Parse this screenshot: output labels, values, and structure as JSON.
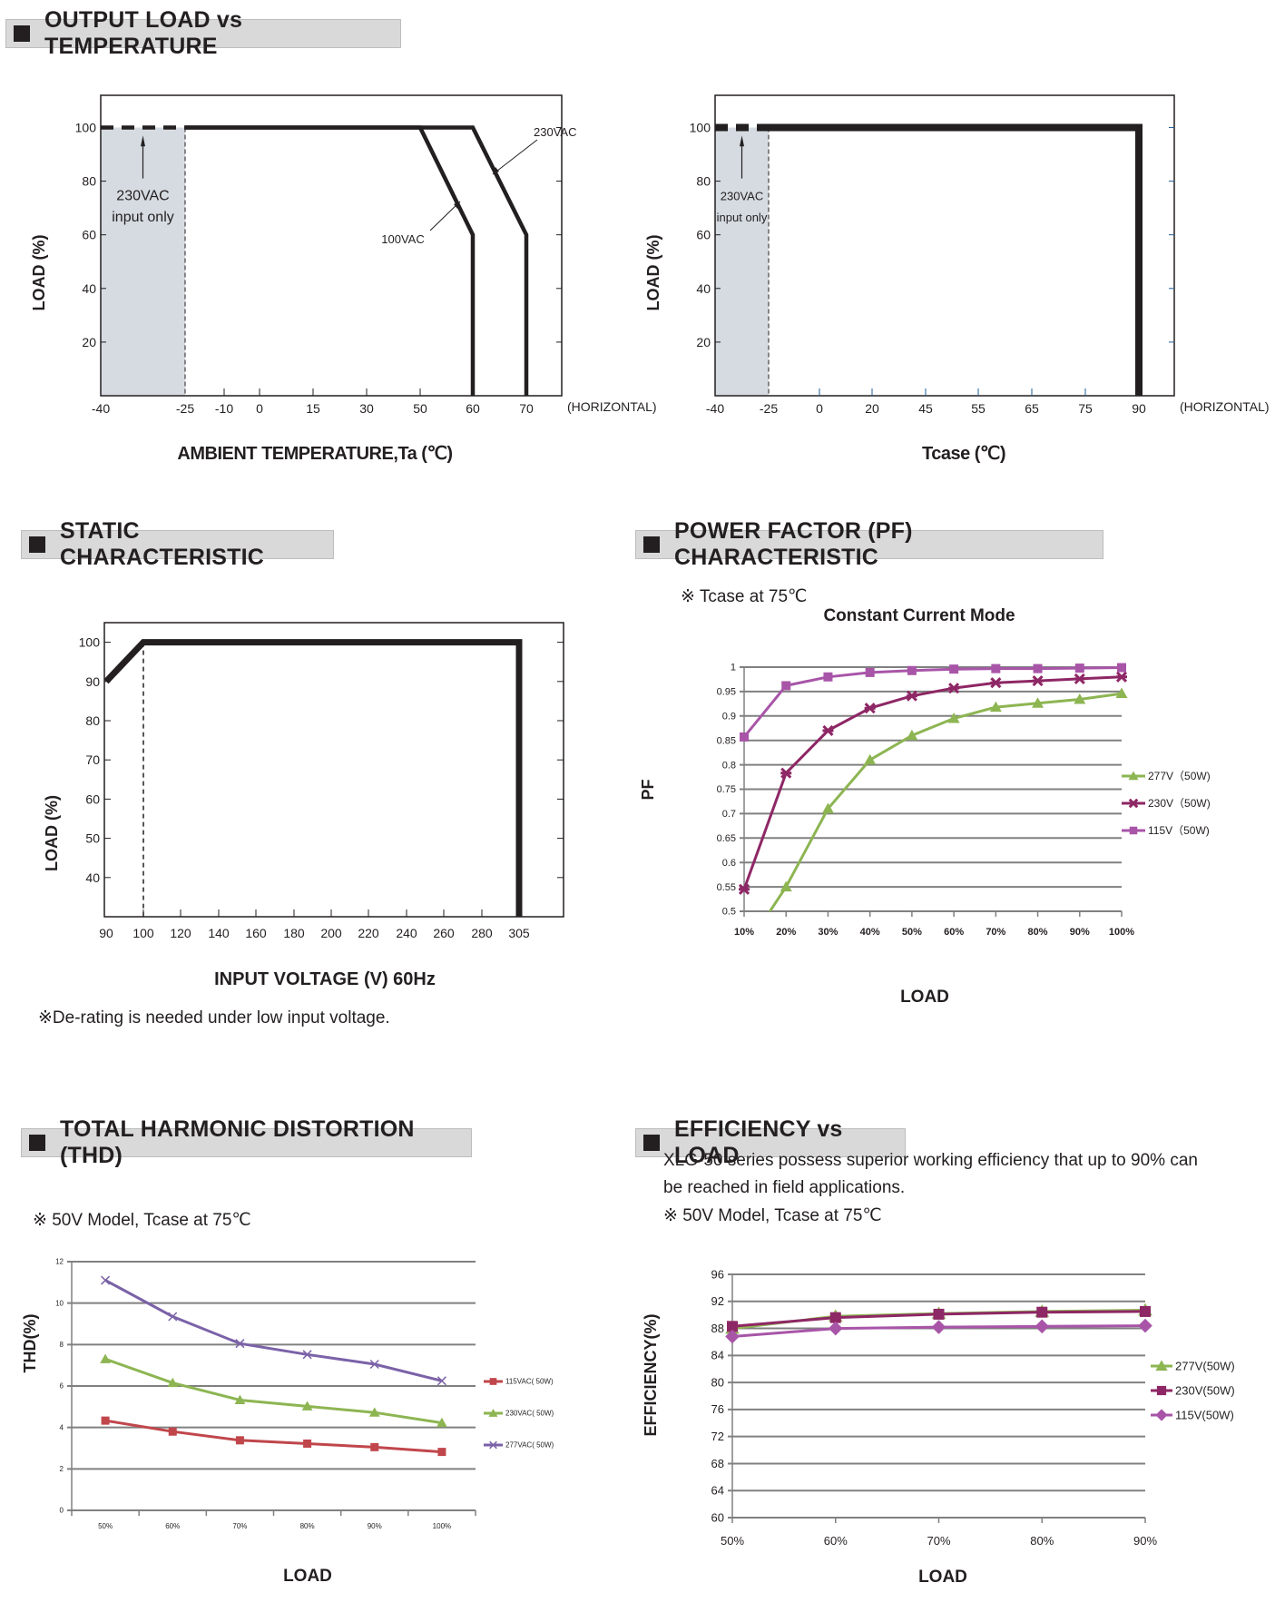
{
  "sections": {
    "output_load": {
      "title": "OUTPUT LOAD vs TEMPERATURE"
    },
    "static": {
      "title": "STATIC CHARACTERISTIC",
      "note": "※De-rating is needed under low input voltage."
    },
    "pf": {
      "title": "POWER FACTOR (PF) CHARACTERISTIC",
      "note": "※ Tcase at 75℃"
    },
    "thd": {
      "title": "TOTAL HARMONIC DISTORTION (THD)",
      "note": "※ 50V Model, Tcase at 75℃"
    },
    "efficiency": {
      "title": "EFFICIENCY vs LOAD",
      "desc_line1": "XLG-50 series possess superior working efficiency that up to 90% can",
      "desc_line2": "be reached in field applications.",
      "note": "※ 50V Model, Tcase at 75℃"
    }
  },
  "chart_data": [
    {
      "id": "derating_ambient",
      "type": "line",
      "title": "",
      "xlabel": "AMBIENT TEMPERATURE,Ta (℃)",
      "ylabel": "LOAD (%)",
      "x_ticks": [
        -40,
        -25,
        -10,
        0,
        15,
        30,
        50,
        60,
        70
      ],
      "x_tick_labels": [
        "-40",
        "-25",
        "-10",
        "0",
        "15",
        "30",
        "50",
        "60",
        "70"
      ],
      "x_suffix": "(HORIZONTAL)",
      "y_ticks": [
        20,
        40,
        60,
        80,
        100
      ],
      "y_tick_labels": [
        "20",
        "40",
        "60",
        "80",
        "100"
      ],
      "ylim": [
        0,
        112
      ],
      "shaded_region": {
        "x": [
          -40,
          -25
        ],
        "label_line1": "230VAC",
        "label_line2": "input only"
      },
      "series": [
        {
          "name": "100VAC",
          "points": [
            [
              -25,
              100
            ],
            [
              50,
              100
            ],
            [
              60,
              60
            ],
            [
              60,
              0
            ]
          ]
        },
        {
          "name": "230VAC",
          "points": [
            [
              -40,
              100
            ],
            [
              -25,
              100
            ],
            [
              60,
              100
            ],
            [
              70,
              60
            ],
            [
              70,
              0
            ]
          ],
          "dashed_until": -25
        }
      ],
      "annotations": [
        "230VAC",
        "100VAC"
      ]
    },
    {
      "id": "derating_tcase",
      "type": "line",
      "xlabel": "Tcase (℃)",
      "ylabel": "LOAD (%)",
      "x_ticks": [
        -40,
        -25,
        0,
        20,
        45,
        55,
        65,
        75,
        90
      ],
      "x_tick_labels": [
        "-40",
        "-25",
        "0",
        "20",
        "45",
        "55",
        "65",
        "75",
        "90"
      ],
      "x_suffix": "(HORIZONTAL)",
      "y_ticks": [
        20,
        40,
        60,
        80,
        100
      ],
      "y_tick_labels": [
        "20",
        "40",
        "60",
        "80",
        "100"
      ],
      "ylim": [
        0,
        112
      ],
      "shaded_region": {
        "x": [
          -40,
          -25
        ],
        "label_line1": "230VAC",
        "label_line2": "input only"
      },
      "series": [
        {
          "name": "Load",
          "points": [
            [
              -40,
              100
            ],
            [
              -25,
              100
            ],
            [
              90,
              100
            ],
            [
              90,
              0
            ]
          ],
          "dashed_until": -25
        }
      ]
    },
    {
      "id": "static",
      "type": "line",
      "xlabel": "INPUT VOLTAGE (V) 60Hz",
      "ylabel": "LOAD (%)",
      "x_tick_labels": [
        "90",
        "100",
        "120",
        "140",
        "160",
        "180",
        "200",
        "220",
        "240",
        "260",
        "280",
        "305"
      ],
      "y_ticks": [
        40,
        50,
        60,
        70,
        80,
        90,
        100
      ],
      "y_tick_labels": [
        "40",
        "50",
        "60",
        "70",
        "80",
        "90",
        "100"
      ],
      "ylim": [
        30,
        105
      ],
      "series": [
        {
          "name": "Load",
          "points": [
            [
              "90",
              90
            ],
            [
              "100",
              100
            ],
            [
              "305",
              100
            ],
            [
              "305",
              30
            ]
          ]
        }
      ],
      "reference_line_x": "100"
    },
    {
      "id": "pf",
      "type": "line",
      "title": "Constant Current Mode",
      "xlabel": "LOAD",
      "ylabel": "PF",
      "categories": [
        "10%",
        "20%",
        "30%",
        "40%",
        "50%",
        "60%",
        "70%",
        "80%",
        "90%",
        "100%"
      ],
      "y_ticks": [
        0.5,
        0.55,
        0.6,
        0.65,
        0.7,
        0.75,
        0.8,
        0.85,
        0.9,
        0.95,
        1
      ],
      "y_tick_labels": [
        "0.5",
        "0.55",
        "0.6",
        "0.65",
        "0.7",
        "0.75",
        "0.8",
        "0.85",
        "0.9",
        "0.95",
        "1"
      ],
      "ylim": [
        0.5,
        1
      ],
      "grid": true,
      "legend": "right",
      "series": [
        {
          "name": "277V（50W)",
          "color": "#8db552",
          "marker": "triangle",
          "values": [
            0.42,
            0.55,
            0.71,
            0.81,
            0.86,
            0.895,
            0.918,
            0.926,
            0.934,
            0.946
          ]
        },
        {
          "name": "230V（50W)",
          "color": "#8e2765",
          "marker": "star",
          "values": [
            0.545,
            0.783,
            0.87,
            0.916,
            0.941,
            0.957,
            0.968,
            0.972,
            0.976,
            0.98
          ]
        },
        {
          "name": "115V（50W)",
          "color": "#a855a8",
          "marker": "square",
          "values": [
            0.857,
            0.962,
            0.98,
            0.989,
            0.993,
            0.996,
            0.997,
            0.997,
            0.998,
            0.999
          ]
        }
      ]
    },
    {
      "id": "thd",
      "type": "line",
      "xlabel": "LOAD",
      "ylabel": "THD(%)",
      "categories": [
        "50%",
        "60%",
        "70%",
        "80%",
        "90%",
        "100%"
      ],
      "y_ticks": [
        0,
        2,
        4,
        6,
        8,
        10,
        12
      ],
      "y_tick_labels": [
        "0",
        "2",
        "4",
        "6",
        "8",
        "10",
        "12"
      ],
      "ylim": [
        0,
        12
      ],
      "grid": true,
      "legend": "right",
      "series": [
        {
          "name": "115VAC(  50W)",
          "color": "#c0464b",
          "marker": "square",
          "values": [
            4.33,
            3.8,
            3.38,
            3.22,
            3.05,
            2.82
          ]
        },
        {
          "name": "230VAC(  50W)",
          "color": "#8db552",
          "marker": "triangle",
          "values": [
            7.3,
            6.15,
            5.32,
            5.02,
            4.72,
            4.22
          ]
        },
        {
          "name": "277VAC(  50W)",
          "color": "#7b62a8",
          "marker": "x",
          "values": [
            11.1,
            9.35,
            8.05,
            7.52,
            7.05,
            6.25
          ]
        }
      ]
    },
    {
      "id": "efficiency",
      "type": "line",
      "xlabel": "LOAD",
      "ylabel": "EFFICIENCY(%)",
      "categories": [
        "50%",
        "60%",
        "70%",
        "80%",
        "90%"
      ],
      "y_ticks": [
        60,
        64,
        68,
        72,
        76,
        80,
        84,
        88,
        92,
        96
      ],
      "y_tick_labels": [
        "60",
        "64",
        "68",
        "72",
        "76",
        "80",
        "84",
        "88",
        "92",
        "96"
      ],
      "ylim": [
        60,
        96
      ],
      "grid": true,
      "legend": "right",
      "series": [
        {
          "name": "277V(50W)",
          "color": "#8db552",
          "marker": "triangle",
          "values": [
            88.0,
            89.8,
            90.2,
            90.5,
            90.7
          ]
        },
        {
          "name": "230V(50W)",
          "color": "#8e2765",
          "marker": "square",
          "values": [
            88.3,
            89.6,
            90.1,
            90.4,
            90.5
          ]
        },
        {
          "name": "115V(50W)",
          "color": "#a855a8",
          "marker": "diamond",
          "values": [
            86.8,
            88.0,
            88.2,
            88.3,
            88.4
          ]
        }
      ]
    }
  ]
}
